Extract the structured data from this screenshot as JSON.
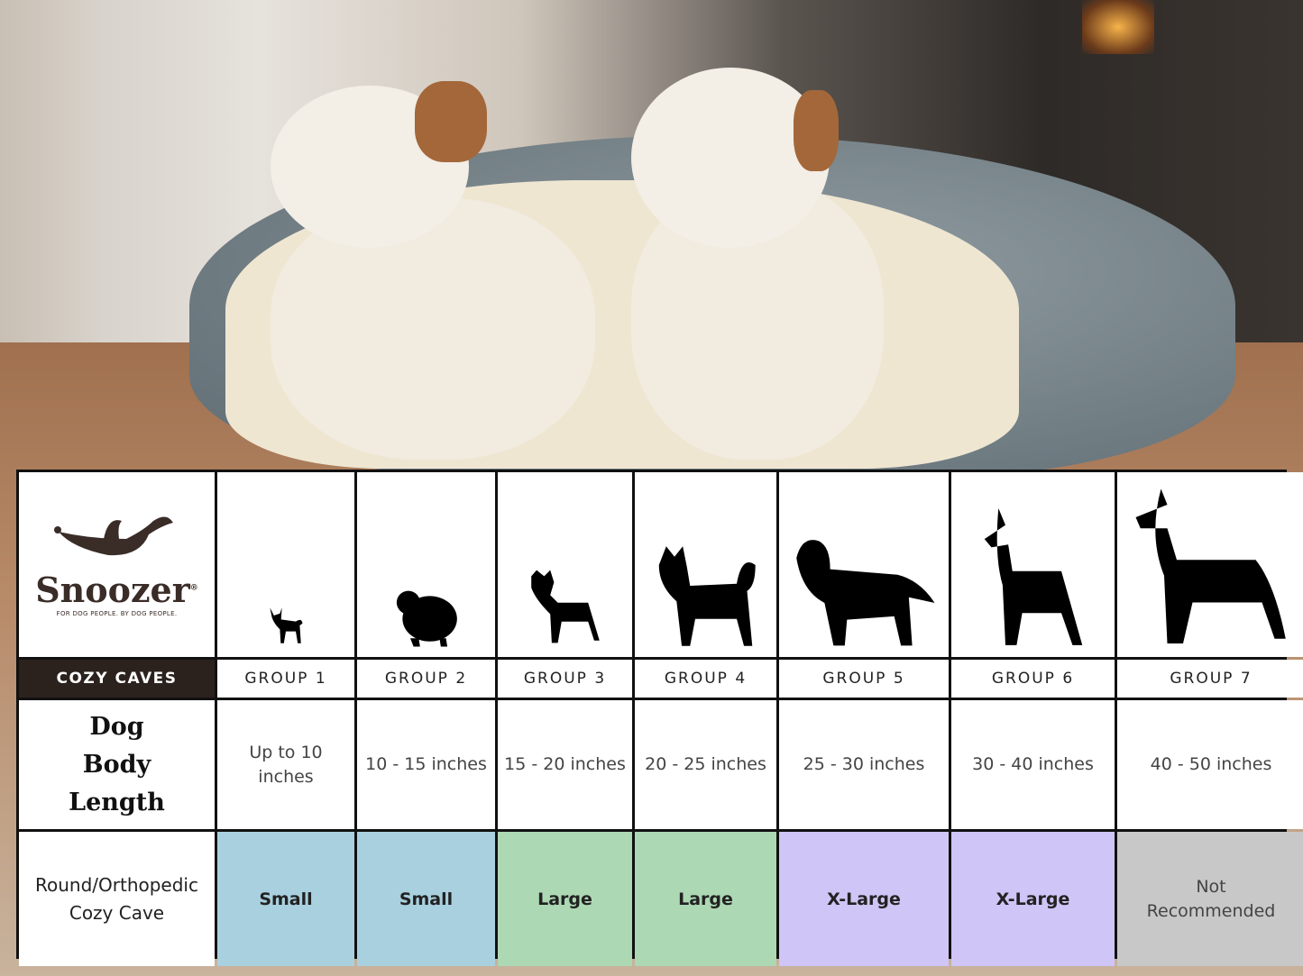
{
  "brand": {
    "name": "Snoozer",
    "registered": "®",
    "tagline": "FOR DOG PEOPLE. BY DOG PEOPLE."
  },
  "table": {
    "product_label": "COZY CAVES",
    "groups": [
      "GROUP 1",
      "GROUP 2",
      "GROUP 3",
      "GROUP 4",
      "GROUP 5",
      "GROUP 6",
      "GROUP 7"
    ],
    "row_length_header": "Dog Body Length",
    "lengths": [
      "Up to 10 inches",
      "10 - 15 inches",
      "15 - 20 inches",
      "20 - 25 inches",
      "25 - 30 inches",
      "30 - 40 inches",
      "40 - 50 inches"
    ],
    "row_size_header": "Round/Orthopedic Cozy Cave",
    "sizes": [
      "Small",
      "Small",
      "Large",
      "Large",
      "X-Large",
      "X-Large",
      "Not Recommended"
    ],
    "size_colors": {
      "Small": "#a9d0df",
      "Large": "#acd8b4",
      "X-Large": "#cfc5f6",
      "Not Recommended": "#c8c8c8"
    },
    "dog_icons": [
      "chihuahua-silhouette",
      "pomeranian-silhouette",
      "boston-terrier-silhouette",
      "husky-silhouette",
      "golden-retriever-silhouette",
      "doberman-silhouette",
      "great-dane-silhouette"
    ]
  }
}
